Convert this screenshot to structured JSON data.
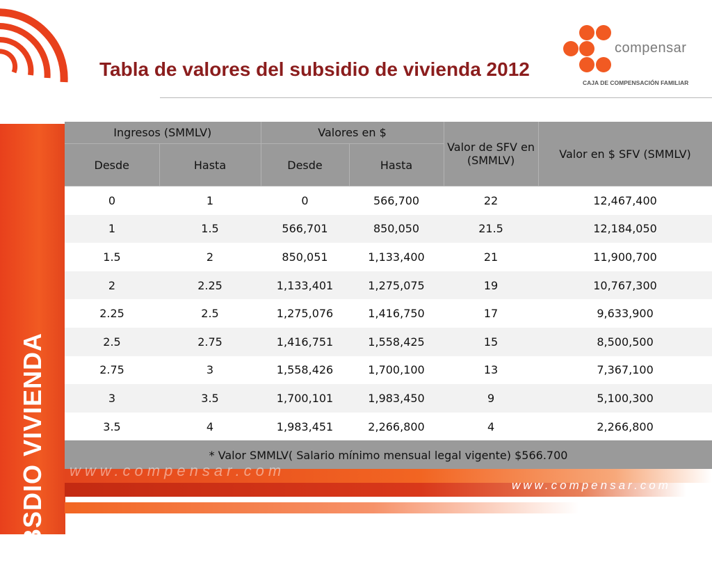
{
  "header": {
    "title": "Tabla de valores del subsidio de vivienda 2012"
  },
  "sidebar": {
    "title": "SUBSDIO VIVIENDA"
  },
  "logo": {
    "name": "compensar",
    "tagline": "CAJA DE COMPENSACIÓN FAMILIAR"
  },
  "table": {
    "group_headers": {
      "ingresos": "Ingresos (SMMLV)",
      "valores": "Valores en $",
      "valor_sfv_smmlv": "Valor de SFV en (SMMLV)",
      "valor_sfv_pesos": "Valor en $ SFV (SMMLV)"
    },
    "sub_headers": [
      "Desde",
      "Hasta",
      "Desde",
      "Hasta"
    ],
    "rows": [
      [
        "0",
        "1",
        "0",
        "566,700",
        "22",
        "12,467,400"
      ],
      [
        "1",
        "1.5",
        "566,701",
        "850,050",
        "21.5",
        "12,184,050"
      ],
      [
        "1.5",
        "2",
        "850,051",
        "1,133,400",
        "21",
        "11,900,700"
      ],
      [
        "2",
        "2.25",
        "1,133,401",
        "1,275,075",
        "19",
        "10,767,300"
      ],
      [
        "2.25",
        "2.5",
        "1,275,076",
        "1,416,750",
        "17",
        "9,633,900"
      ],
      [
        "2.5",
        "2.75",
        "1,416,751",
        "1,558,425",
        "15",
        "8,500,500"
      ],
      [
        "2.75",
        "3",
        "1,558,426",
        "1,700,100",
        "13",
        "7,367,100"
      ],
      [
        "3",
        "3.5",
        "1,700,101",
        "1,983,450",
        "9",
        "5,100,300"
      ],
      [
        "3.5",
        "4",
        "1,983,451",
        "2,266,800",
        "4",
        "2,266,800"
      ]
    ],
    "footnote": "* Valor SMMLV( Salario mínimo mensual legal vigente) $566.700"
  },
  "footer": {
    "watermark_url": "www.compensar.com",
    "url": "www.compensar.com"
  },
  "colors": {
    "brand_orange": "#f15a22",
    "title_red": "#8b1d1d",
    "header_gray": "#9a9a9a"
  }
}
